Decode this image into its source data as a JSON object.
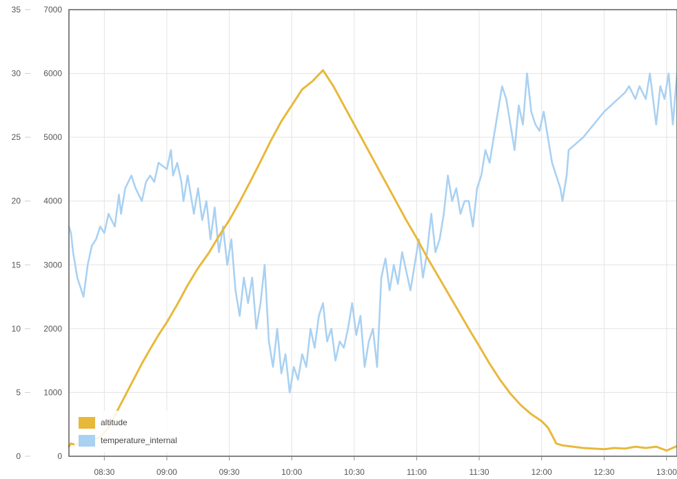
{
  "chart_data": {
    "type": "line",
    "title": "",
    "x": {
      "ticks": [
        "08:30",
        "09:00",
        "09:30",
        "10:00",
        "10:30",
        "11:00",
        "11:30",
        "12:00",
        "12:30",
        "13:00"
      ],
      "range": [
        "08:13",
        "13:05"
      ]
    },
    "y_left": {
      "ticks": [
        "0",
        "5",
        "10",
        "15",
        "20",
        "25",
        "30",
        "35"
      ],
      "range": [
        0,
        35
      ]
    },
    "y_right": {
      "ticks": [
        "0",
        "1000",
        "2000",
        "3000",
        "4000",
        "5000",
        "6000",
        "7000"
      ],
      "range": [
        0,
        7000
      ]
    },
    "grid": true,
    "legend_position": "bottom-left",
    "colors": {
      "altitude": "#e8b83a",
      "temperature_internal": "#a9d1f2"
    },
    "series": [
      {
        "name": "altitude",
        "axis": "right",
        "points": [
          [
            "08:13",
            150
          ],
          [
            "08:14",
            200
          ],
          [
            "08:16",
            180
          ],
          [
            "08:20",
            220
          ],
          [
            "08:24",
            250
          ],
          [
            "08:28",
            300
          ],
          [
            "08:32",
            450
          ],
          [
            "08:36",
            700
          ],
          [
            "08:40",
            950
          ],
          [
            "08:44",
            1200
          ],
          [
            "08:48",
            1450
          ],
          [
            "08:52",
            1680
          ],
          [
            "08:56",
            1900
          ],
          [
            "09:00",
            2100
          ],
          [
            "09:05",
            2380
          ],
          [
            "09:10",
            2680
          ],
          [
            "09:15",
            2950
          ],
          [
            "09:20",
            3180
          ],
          [
            "09:25",
            3450
          ],
          [
            "09:30",
            3700
          ],
          [
            "09:35",
            3990
          ],
          [
            "09:40",
            4300
          ],
          [
            "09:45",
            4620
          ],
          [
            "09:50",
            4950
          ],
          [
            "09:55",
            5250
          ],
          [
            "10:00",
            5500
          ],
          [
            "10:05",
            5750
          ],
          [
            "10:10",
            5880
          ],
          [
            "10:15",
            6050
          ],
          [
            "10:20",
            5800
          ],
          [
            "10:25",
            5500
          ],
          [
            "10:30",
            5200
          ],
          [
            "10:35",
            4900
          ],
          [
            "10:40",
            4600
          ],
          [
            "10:45",
            4300
          ],
          [
            "10:50",
            4000
          ],
          [
            "10:55",
            3700
          ],
          [
            "11:00",
            3420
          ],
          [
            "11:05",
            3120
          ],
          [
            "11:10",
            2840
          ],
          [
            "11:15",
            2560
          ],
          [
            "11:20",
            2280
          ],
          [
            "11:25",
            2000
          ],
          [
            "11:30",
            1730
          ],
          [
            "11:35",
            1450
          ],
          [
            "11:40",
            1200
          ],
          [
            "11:45",
            980
          ],
          [
            "11:50",
            800
          ],
          [
            "11:55",
            660
          ],
          [
            "12:00",
            550
          ],
          [
            "12:03",
            450
          ],
          [
            "12:05",
            330
          ],
          [
            "12:07",
            200
          ],
          [
            "12:10",
            170
          ],
          [
            "12:15",
            150
          ],
          [
            "12:20",
            130
          ],
          [
            "12:25",
            120
          ],
          [
            "12:30",
            110
          ],
          [
            "12:35",
            130
          ],
          [
            "12:40",
            120
          ],
          [
            "12:45",
            150
          ],
          [
            "12:50",
            130
          ],
          [
            "12:55",
            150
          ],
          [
            "13:00",
            90
          ],
          [
            "13:05",
            160
          ]
        ]
      },
      {
        "name": "temperature_internal",
        "axis": "left",
        "points": [
          [
            "08:13",
            18
          ],
          [
            "08:14",
            17.5
          ],
          [
            "08:15",
            16
          ],
          [
            "08:17",
            14
          ],
          [
            "08:19",
            13
          ],
          [
            "08:20",
            12.5
          ],
          [
            "08:22",
            15
          ],
          [
            "08:24",
            16.5
          ],
          [
            "08:26",
            17
          ],
          [
            "08:28",
            18
          ],
          [
            "08:30",
            17.5
          ],
          [
            "08:32",
            19
          ],
          [
            "08:35",
            18
          ],
          [
            "08:37",
            20.5
          ],
          [
            "08:38",
            19
          ],
          [
            "08:40",
            21
          ],
          [
            "08:43",
            22
          ],
          [
            "08:45",
            21
          ],
          [
            "08:48",
            20
          ],
          [
            "08:50",
            21.5
          ],
          [
            "08:52",
            22
          ],
          [
            "08:54",
            21.5
          ],
          [
            "08:56",
            23
          ],
          [
            "09:00",
            22.5
          ],
          [
            "09:02",
            24
          ],
          [
            "09:03",
            22
          ],
          [
            "09:05",
            23
          ],
          [
            "09:07",
            21.5
          ],
          [
            "09:08",
            20
          ],
          [
            "09:10",
            22
          ],
          [
            "09:13",
            19
          ],
          [
            "09:15",
            21
          ],
          [
            "09:17",
            18.5
          ],
          [
            "09:19",
            20
          ],
          [
            "09:21",
            17
          ],
          [
            "09:23",
            19.5
          ],
          [
            "09:25",
            16
          ],
          [
            "09:27",
            18
          ],
          [
            "09:29",
            15
          ],
          [
            "09:31",
            17
          ],
          [
            "09:33",
            13
          ],
          [
            "09:35",
            11
          ],
          [
            "09:37",
            14
          ],
          [
            "09:39",
            12
          ],
          [
            "09:41",
            14
          ],
          [
            "09:43",
            10
          ],
          [
            "09:45",
            12
          ],
          [
            "09:47",
            15
          ],
          [
            "09:49",
            9
          ],
          [
            "09:51",
            7
          ],
          [
            "09:53",
            10
          ],
          [
            "09:55",
            6.5
          ],
          [
            "09:57",
            8
          ],
          [
            "09:59",
            5
          ],
          [
            "10:01",
            7
          ],
          [
            "10:03",
            6
          ],
          [
            "10:05",
            8
          ],
          [
            "10:07",
            7
          ],
          [
            "10:09",
            10
          ],
          [
            "10:11",
            8.5
          ],
          [
            "10:13",
            11
          ],
          [
            "10:15",
            12
          ],
          [
            "10:17",
            9
          ],
          [
            "10:19",
            10
          ],
          [
            "10:21",
            7.5
          ],
          [
            "10:23",
            9
          ],
          [
            "10:25",
            8.5
          ],
          [
            "10:27",
            10
          ],
          [
            "10:29",
            12
          ],
          [
            "10:31",
            9.5
          ],
          [
            "10:33",
            11
          ],
          [
            "10:35",
            7
          ],
          [
            "10:37",
            9
          ],
          [
            "10:39",
            10
          ],
          [
            "10:41",
            7
          ],
          [
            "10:43",
            14
          ],
          [
            "10:45",
            15.5
          ],
          [
            "10:47",
            13
          ],
          [
            "10:49",
            15
          ],
          [
            "10:51",
            13.5
          ],
          [
            "10:53",
            16
          ],
          [
            "10:55",
            14.5
          ],
          [
            "10:57",
            13
          ],
          [
            "10:59",
            15
          ],
          [
            "11:01",
            17
          ],
          [
            "11:03",
            14
          ],
          [
            "11:05",
            16
          ],
          [
            "11:07",
            19
          ],
          [
            "11:09",
            16
          ],
          [
            "11:11",
            17
          ],
          [
            "11:13",
            19
          ],
          [
            "11:15",
            22
          ],
          [
            "11:17",
            20
          ],
          [
            "11:19",
            21
          ],
          [
            "11:21",
            19
          ],
          [
            "11:23",
            20
          ],
          [
            "11:25",
            20
          ],
          [
            "11:27",
            18
          ],
          [
            "11:29",
            21
          ],
          [
            "11:31",
            22
          ],
          [
            "11:33",
            24
          ],
          [
            "11:35",
            23
          ],
          [
            "11:37",
            25
          ],
          [
            "11:39",
            27
          ],
          [
            "11:41",
            29
          ],
          [
            "11:43",
            28
          ],
          [
            "11:45",
            26
          ],
          [
            "11:47",
            24
          ],
          [
            "11:49",
            27.5
          ],
          [
            "11:51",
            26
          ],
          [
            "11:53",
            30
          ],
          [
            "11:55",
            27
          ],
          [
            "11:57",
            26
          ],
          [
            "11:59",
            25.5
          ],
          [
            "12:01",
            27
          ],
          [
            "12:03",
            25
          ],
          [
            "12:05",
            23
          ],
          [
            "12:07",
            22
          ],
          [
            "12:09",
            21
          ],
          [
            "12:10",
            20
          ],
          [
            "12:11",
            21
          ],
          [
            "12:12",
            22
          ],
          [
            "12:13",
            24
          ],
          [
            "12:20",
            25
          ],
          [
            "12:30",
            27
          ],
          [
            "12:40",
            28.5
          ],
          [
            "12:42",
            29
          ],
          [
            "12:45",
            28
          ],
          [
            "12:47",
            29
          ],
          [
            "12:50",
            28
          ],
          [
            "12:52",
            30
          ],
          [
            "12:55",
            26
          ],
          [
            "12:57",
            29
          ],
          [
            "12:59",
            28
          ],
          [
            "13:01",
            30
          ],
          [
            "13:03",
            26
          ],
          [
            "13:05",
            30
          ]
        ]
      }
    ]
  }
}
